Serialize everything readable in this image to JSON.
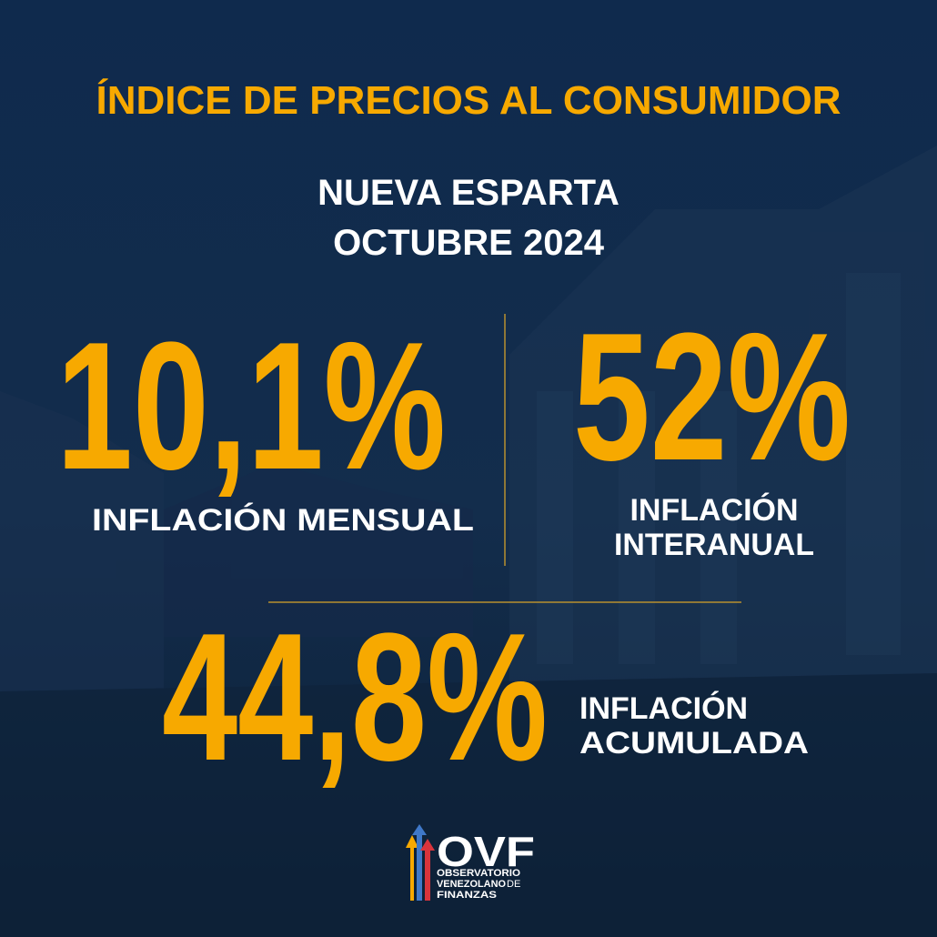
{
  "header": {
    "title": "ÍNDICE DE PRECIOS AL CONSUMIDOR",
    "region": "NUEVA ESPARTA",
    "period": "OCTUBRE 2024"
  },
  "stats": [
    {
      "value": "10,1%",
      "label": [
        "INFLACIÓN MENSUAL"
      ]
    },
    {
      "value": "52%",
      "label": [
        "INFLACIÓN",
        "INTERANUAL"
      ]
    },
    {
      "value": "44,8%",
      "label": [
        "INFLACIÓN",
        "ACUMULADA"
      ]
    }
  ],
  "logo": {
    "acronym": "OVF",
    "lines": [
      "OBSERVATORIO",
      "VENEZOLANO",
      "DE",
      "FINANZAS"
    ]
  }
}
